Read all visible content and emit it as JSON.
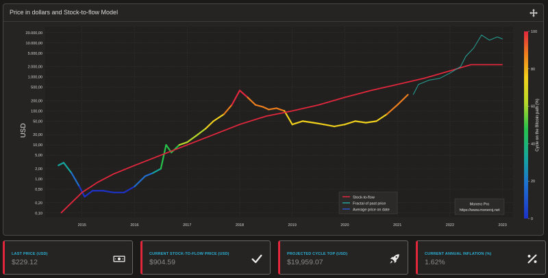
{
  "panel": {
    "title": "Price in dollars and Stock-to-flow Model"
  },
  "chart_data": {
    "type": "line",
    "xlabel": "",
    "ylabel": "USD",
    "y_scale": "log",
    "y_ticks": [
      0.1,
      0.2,
      0.5,
      1,
      2,
      5,
      10,
      20,
      50,
      100,
      200,
      500,
      1000,
      2000,
      5000,
      10000,
      20000
    ],
    "y_tick_labels": [
      "0,10",
      "0,20",
      "0,50",
      "1,00",
      "2,00",
      "5,00",
      "10,00",
      "20,00",
      "50,00",
      "100,00",
      "200,00",
      "500,00",
      "1.000,00",
      "2.000,00",
      "5.000,00",
      "10.000,00",
      "20.000,00"
    ],
    "x_ticks": [
      2015,
      2016,
      2017,
      2018,
      2019,
      2020,
      2021,
      2022,
      2023
    ],
    "x_tick_labels": [
      "2015",
      "2016",
      "2017",
      "2018",
      "2019",
      "2020",
      "2021",
      "2022",
      "2023"
    ],
    "colorbar": {
      "label": "Cycle on the Bitcoin path (%)",
      "ticks": [
        0,
        20,
        40,
        60,
        80,
        100
      ],
      "tick_labels": [
        "0",
        "20",
        "40",
        "60",
        "80",
        "100"
      ]
    },
    "legend_position": "bottom-center",
    "series": [
      {
        "name": "Stock-to-flow",
        "color": "#e2273d",
        "points": [
          [
            2014.6,
            0.1
          ],
          [
            2014.8,
            0.2
          ],
          [
            2015.0,
            0.4
          ],
          [
            2015.3,
            0.8
          ],
          [
            2015.6,
            1.4
          ],
          [
            2016.0,
            2.5
          ],
          [
            2016.5,
            5
          ],
          [
            2017.0,
            10
          ],
          [
            2017.5,
            20
          ],
          [
            2018.0,
            40
          ],
          [
            2018.5,
            70
          ],
          [
            2019.0,
            100
          ],
          [
            2019.5,
            150
          ],
          [
            2020.0,
            250
          ],
          [
            2020.5,
            400
          ],
          [
            2021.0,
            600
          ],
          [
            2021.5,
            900
          ],
          [
            2022.0,
            1500
          ],
          [
            2022.4,
            2300
          ],
          [
            2022.8,
            2300
          ],
          [
            2023.0,
            2300
          ]
        ]
      },
      {
        "name": "Fractal of past price",
        "color": "#26a69a",
        "points": [
          [
            2021.3,
            300
          ],
          [
            2021.4,
            600
          ],
          [
            2021.6,
            800
          ],
          [
            2021.8,
            900
          ],
          [
            2022.0,
            1300
          ],
          [
            2022.2,
            2000
          ],
          [
            2022.3,
            4000
          ],
          [
            2022.45,
            7000
          ],
          [
            2022.6,
            17000
          ],
          [
            2022.75,
            12000
          ],
          [
            2022.9,
            15000
          ],
          [
            2023.0,
            13000
          ]
        ]
      },
      {
        "name": "Average price on date",
        "color": "#2b56c9",
        "points": [
          [
            2014.55,
            2.5
          ],
          [
            2014.65,
            3
          ],
          [
            2014.8,
            1.5
          ],
          [
            2014.95,
            0.6
          ],
          [
            2015.05,
            0.3
          ],
          [
            2015.2,
            0.45
          ],
          [
            2015.4,
            0.45
          ],
          [
            2015.6,
            0.4
          ],
          [
            2015.8,
            0.4
          ],
          [
            2016.0,
            0.6
          ],
          [
            2016.2,
            1.2
          ],
          [
            2016.35,
            1.5
          ],
          [
            2016.5,
            2.0
          ],
          [
            2016.6,
            10
          ],
          [
            2016.7,
            6
          ],
          [
            2016.85,
            10
          ],
          [
            2017.0,
            12
          ],
          [
            2017.2,
            20
          ],
          [
            2017.35,
            30
          ],
          [
            2017.5,
            50
          ],
          [
            2017.7,
            80
          ],
          [
            2017.85,
            150
          ],
          [
            2018.0,
            400
          ],
          [
            2018.15,
            250
          ],
          [
            2018.3,
            150
          ],
          [
            2018.45,
            130
          ],
          [
            2018.55,
            110
          ],
          [
            2018.7,
            120
          ],
          [
            2018.85,
            100
          ],
          [
            2019.0,
            40
          ],
          [
            2019.2,
            50
          ],
          [
            2019.4,
            45
          ],
          [
            2019.6,
            40
          ],
          [
            2019.8,
            35
          ],
          [
            2020.0,
            40
          ],
          [
            2020.2,
            50
          ],
          [
            2020.4,
            45
          ],
          [
            2020.6,
            50
          ],
          [
            2020.8,
            80
          ],
          [
            2021.0,
            150
          ],
          [
            2021.2,
            300
          ]
        ]
      }
    ]
  },
  "watermark": {
    "line1": "Monero Pro",
    "line2": "https://www.moneroj.net"
  },
  "cards": [
    {
      "label": "LAST PRICE (USD)",
      "value": "$229.12",
      "icon": "money-icon"
    },
    {
      "label": "CURRENT STOCK-TO-FLOW PRICE (USD)",
      "value": "$904.59",
      "icon": "check-icon"
    },
    {
      "label": "PROJECTED CYCLE TOP (USD)",
      "value": "$19,959.07",
      "icon": "rocket-icon"
    },
    {
      "label": "CURRENT ANNUAL INFLATION (%)",
      "value": "1.62%",
      "icon": "percent-icon"
    }
  ],
  "colors": {
    "background": "#1b1a19",
    "panel": "#252422",
    "accent": "#e2273d",
    "label_cyan": "#2cb3d9"
  }
}
